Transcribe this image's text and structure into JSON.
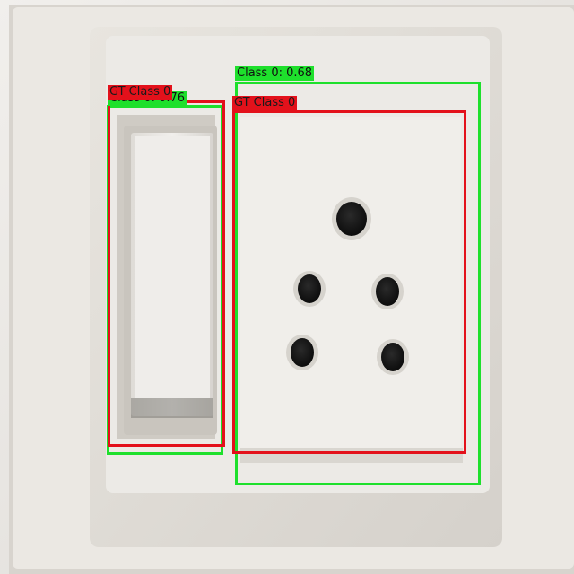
{
  "colors": {
    "ground_truth": "#e3111b",
    "prediction": "#1ee02c",
    "ground_truth_label_text": "#1a1a1a",
    "prediction_label_text": "#111111"
  },
  "detections": {
    "ground_truth": [
      {
        "object": "switch",
        "label": "GT Class 0"
      },
      {
        "object": "socket",
        "label": "GT Class 0"
      }
    ],
    "predictions": [
      {
        "object": "switch",
        "label": "Class 0: 0.76",
        "confidence": 0.76
      },
      {
        "object": "socket",
        "label": "Class 0: 0.68",
        "confidence": 0.68
      }
    ]
  }
}
